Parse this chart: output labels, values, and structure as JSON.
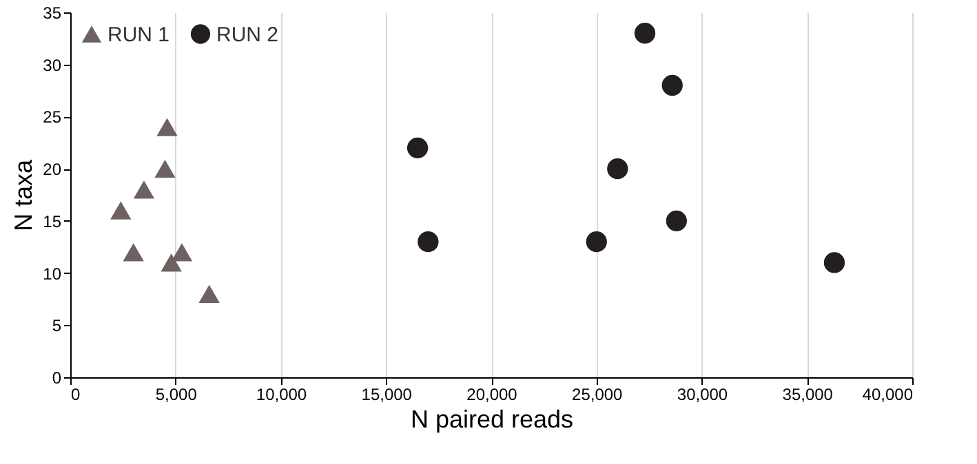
{
  "chart_data": {
    "type": "scatter",
    "xlabel": "N paired reads",
    "ylabel": "N taxa",
    "series": [
      {
        "name": "RUN 1",
        "color": "#6e6161",
        "marker": "triangle",
        "x": [
          2400,
          3000,
          3500,
          4500,
          4600,
          4800,
          5300,
          6600
        ],
        "values": [
          16,
          12,
          18,
          20,
          24,
          11,
          12,
          8
        ]
      },
      {
        "name": "RUN 2",
        "color": "#231f20",
        "marker": "circle",
        "x": [
          16500,
          17000,
          25000,
          26000,
          27300,
          28600,
          28800,
          36300
        ],
        "values": [
          22,
          13,
          13,
          20,
          33,
          28,
          15,
          11
        ]
      }
    ],
    "xlim": [
      0,
      40000
    ],
    "xticks": [
      {
        "value": 0,
        "label": "0"
      },
      {
        "value": 5000,
        "label": "5,000"
      },
      {
        "value": 10000,
        "label": "10,000"
      },
      {
        "value": 15000,
        "label": "15,000"
      },
      {
        "value": 20000,
        "label": "20,000"
      },
      {
        "value": 25000,
        "label": "25,000"
      },
      {
        "value": 30000,
        "label": "30,000"
      },
      {
        "value": 35000,
        "label": "35,000"
      },
      {
        "value": 40000,
        "label": "40,000"
      }
    ],
    "ylim": [
      0,
      35
    ],
    "yticks": [
      0,
      5,
      10,
      15,
      20,
      25,
      30,
      35
    ],
    "grid": "x",
    "legend": "top left"
  }
}
